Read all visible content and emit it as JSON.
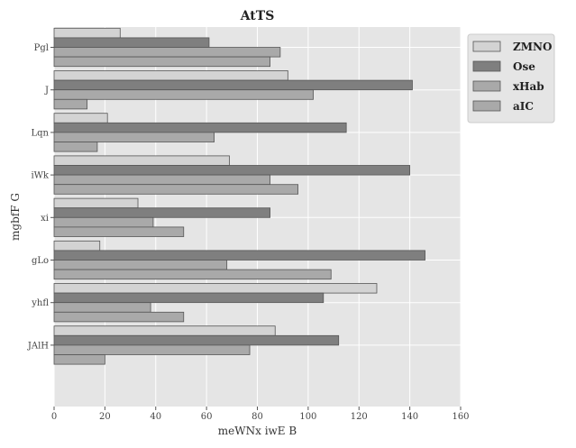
{
  "chart_data": {
    "type": "bar",
    "orientation": "horizontal",
    "title": "AtTS",
    "xlabel": "meWNx iwE B",
    "ylabel": "mgbfF G",
    "categories": [
      "Pgl",
      "J",
      "Lqn",
      "iWk",
      "xi",
      "gLo",
      "yhfl",
      "JAlH"
    ],
    "series": [
      {
        "name": "ZMNO",
        "color": "#d3d3d3",
        "values": [
          26,
          92,
          21,
          69,
          33,
          18,
          127,
          87
        ]
      },
      {
        "name": "Ose",
        "color": "#7f7f7f",
        "values": [
          61,
          141,
          115,
          140,
          85,
          146,
          106,
          112
        ]
      },
      {
        "name": "xHab",
        "color": "#a9a9a9",
        "values": [
          89,
          102,
          63,
          85,
          39,
          68,
          38,
          77
        ]
      },
      {
        "name": "aIC",
        "color": "#a9a9a9",
        "values": [
          85,
          13,
          17,
          96,
          51,
          109,
          51,
          20
        ]
      }
    ],
    "xlim": [
      0,
      160
    ],
    "xticks": [
      0,
      20,
      40,
      60,
      80,
      100,
      120,
      140,
      160
    ],
    "grid": true,
    "legend_position": "top-right",
    "background": "#e5e5e5"
  }
}
